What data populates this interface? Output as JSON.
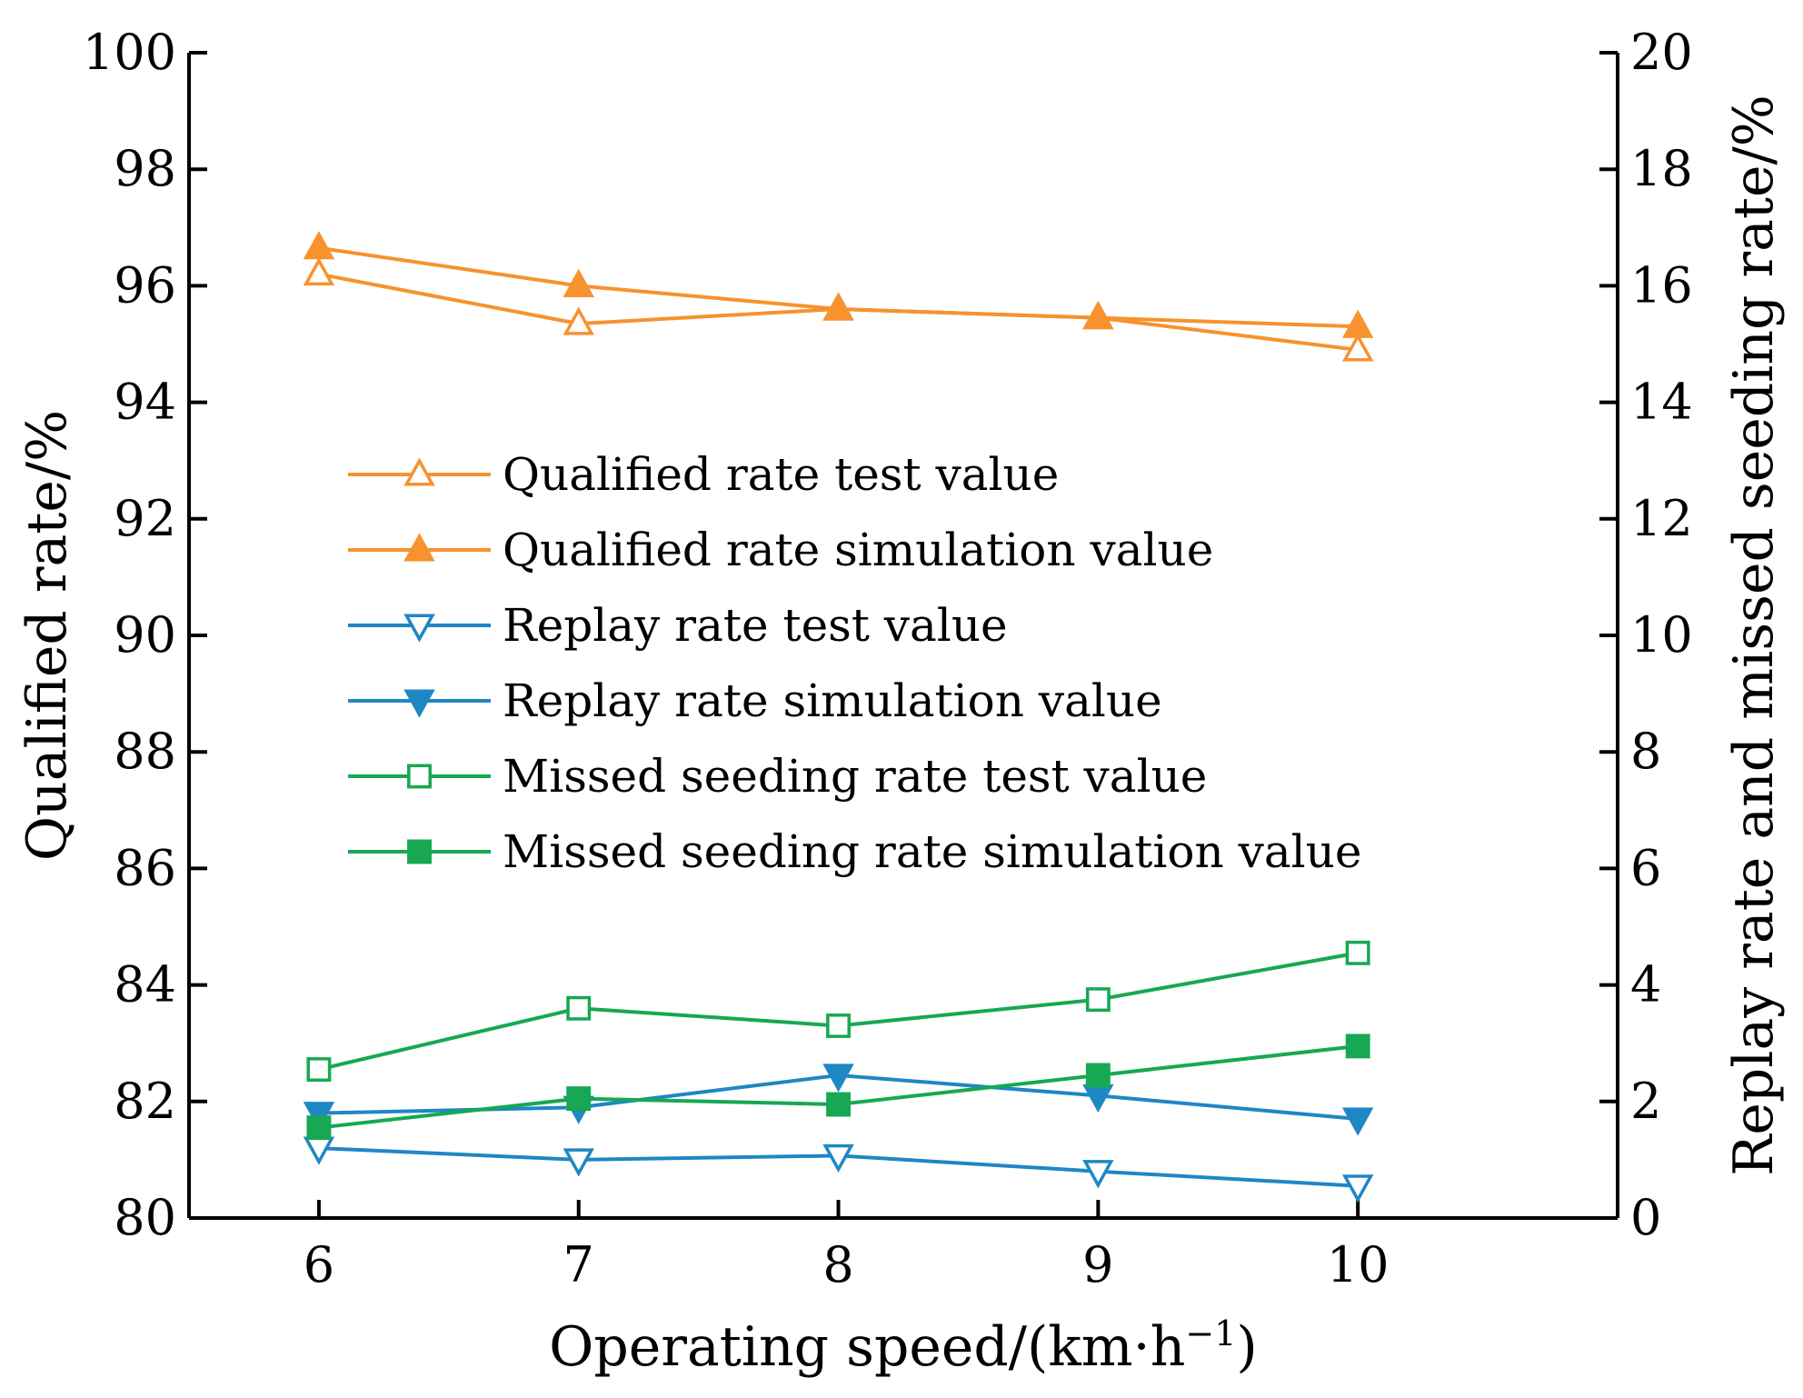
{
  "chart_data": {
    "type": "line",
    "x": [
      6,
      7,
      8,
      9,
      10
    ],
    "xlabel": "Operating speed/(km·h",
    "xlabel_sup": "−1",
    "xlabel_close": ")",
    "ylabel_left": "Qualified rate/%",
    "ylabel_right": "Replay rate and missed seeding rate/%",
    "xlim": [
      5.5,
      11
    ],
    "ylim_left": [
      80,
      100
    ],
    "ylim_right": [
      0,
      20
    ],
    "x_ticks": [
      6,
      7,
      8,
      9,
      10
    ],
    "y_ticks_left": [
      80,
      82,
      84,
      86,
      88,
      90,
      92,
      94,
      96,
      98,
      100
    ],
    "y_ticks_right": [
      0,
      2,
      4,
      6,
      8,
      10,
      12,
      14,
      16,
      18,
      20
    ],
    "legend_position": "center-left",
    "series": [
      {
        "name": "Qualified rate test value",
        "axis": "left",
        "color": "#F7922E",
        "marker": "triangle-up",
        "filled": false,
        "values": [
          96.2,
          95.35,
          95.6,
          95.45,
          94.9
        ]
      },
      {
        "name": "Qualified rate simulation value",
        "axis": "left",
        "color": "#F7922E",
        "marker": "triangle-up",
        "filled": true,
        "values": [
          96.65,
          96.0,
          95.6,
          95.45,
          95.3
        ]
      },
      {
        "name": "Replay rate test value",
        "axis": "right",
        "color": "#1F87C4",
        "marker": "triangle-down",
        "filled": false,
        "values": [
          1.2,
          1.0,
          1.07,
          0.8,
          0.55
        ]
      },
      {
        "name": "Replay rate simulation value",
        "axis": "right",
        "color": "#1F87C4",
        "marker": "triangle-down",
        "filled": true,
        "values": [
          1.8,
          1.9,
          2.45,
          2.1,
          1.7
        ]
      },
      {
        "name": "Missed seeding rate test value",
        "axis": "right",
        "color": "#16A852",
        "marker": "square",
        "filled": false,
        "values": [
          2.55,
          3.6,
          3.3,
          3.75,
          4.55
        ]
      },
      {
        "name": "Missed seeding rate simulation value",
        "axis": "right",
        "color": "#16A852",
        "marker": "square",
        "filled": true,
        "values": [
          1.55,
          2.05,
          1.95,
          2.45,
          2.95
        ]
      }
    ]
  }
}
